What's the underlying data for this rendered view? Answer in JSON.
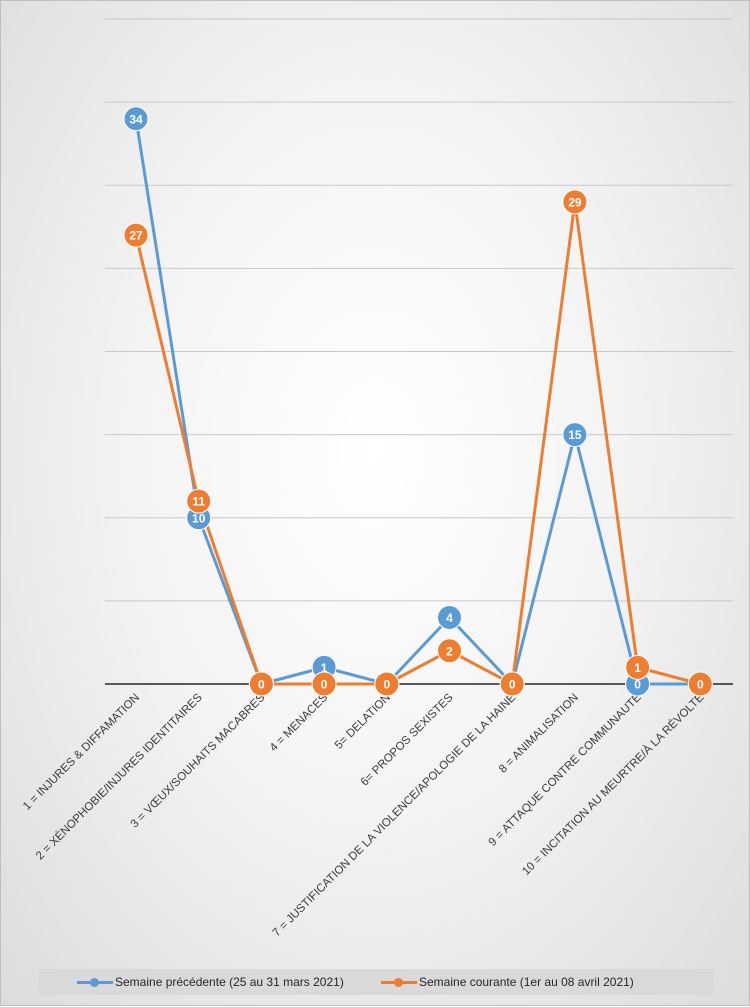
{
  "chart_data": {
    "type": "line",
    "categories": [
      "1 = INJURES & DIFFAMATION",
      "2 = XÉNOPHOBIE/INJURES IDENTITAIRES",
      "3 = VŒUX/SOUHAITS MACABRES",
      "4 = MENACES",
      "5= DELATION",
      "6= PROPOS SEXISTES",
      "7 = JUSTIFICATION DE LA VIOLENCE/APOLOGIE DE LA HAINE",
      "8 = ANIMALISATION",
      "9 = ATTAQUE CONTRE COMMUNAUTÉ",
      "10 = INCITATION AU MEURTRE/À LA RÉVOLTE"
    ],
    "series": [
      {
        "name": "Semaine précédente (25 au 31 mars 2021)",
        "color": "#5b9bd5",
        "values": [
          34,
          10,
          0,
          1,
          0,
          4,
          0,
          15,
          0,
          0
        ]
      },
      {
        "name": "Semaine courante (1er au 08 avril 2021)",
        "color": "#ed7d31",
        "values": [
          27,
          11,
          0,
          0,
          0,
          2,
          0,
          29,
          1,
          0
        ]
      }
    ],
    "ylim": [
      0,
      40
    ],
    "ytick_step": 5,
    "grid": true,
    "legend": "bottom",
    "data_labels": true
  }
}
